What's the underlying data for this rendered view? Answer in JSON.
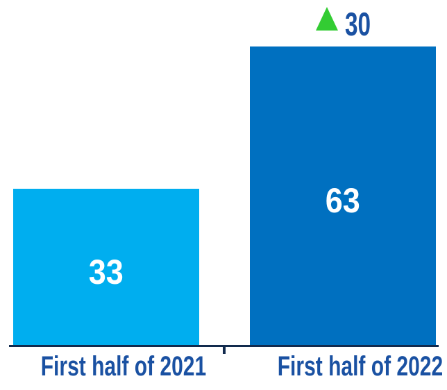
{
  "chart_data": {
    "type": "bar",
    "categories": [
      "First half of 2021",
      "First half of 2022"
    ],
    "values": [
      33,
      63
    ],
    "bar_value_labels": [
      "33",
      "63"
    ],
    "title": "",
    "xlabel": "",
    "ylabel": "",
    "ylim": [
      0,
      66
    ],
    "grid": false,
    "legend": false,
    "annotations": [
      {
        "text": "30",
        "icon": "up-triangle",
        "direction": "up",
        "attached_to": "First half of 2022"
      }
    ],
    "colors": {
      "bar_2021_color": "#00AEEF",
      "bar_2022_color": "#0070C0",
      "value_text_color": "#FFFFFF",
      "label_text_color": "#1A51A2",
      "axis_color": "#122B4E",
      "triangle_color": "#33CC33"
    }
  },
  "bars": [
    {
      "category": "First half of 2021",
      "value": "33"
    },
    {
      "category": "First half of 2022",
      "value": "63"
    }
  ],
  "annotation": {
    "delta": "30"
  }
}
